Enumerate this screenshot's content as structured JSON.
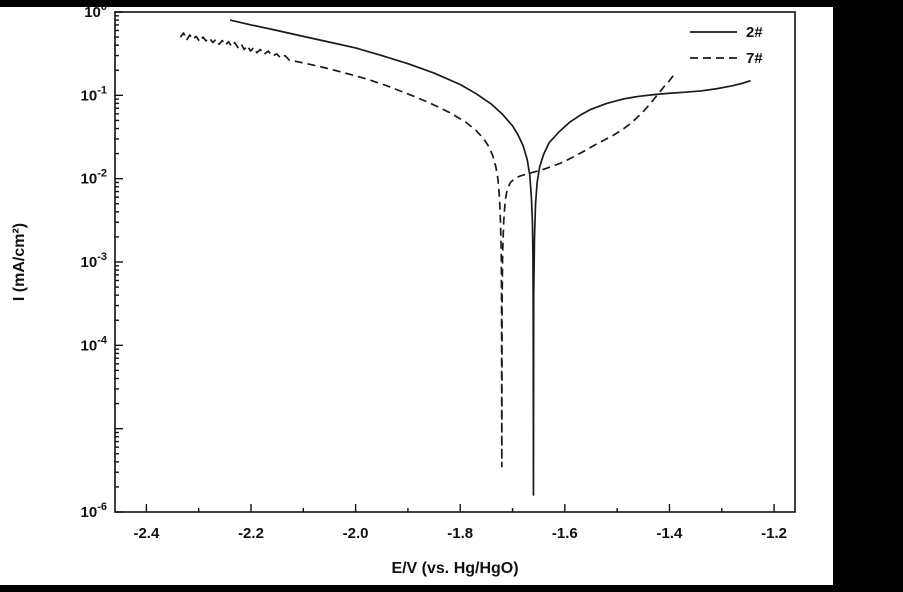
{
  "figure": {
    "background": "#000000",
    "canvas": "#ffffff"
  },
  "chart_data": {
    "type": "line",
    "title": "",
    "xlabel": "E/V (vs. Hg/HgO)",
    "ylabel": "I (mA/cm²)",
    "x_scale": "linear",
    "y_scale": "log",
    "xlim": [
      -2.46,
      -1.16
    ],
    "ylim": [
      1e-06,
      1
    ],
    "grid": false,
    "legend_position": "top-right",
    "line_color": "#1a1a1a",
    "x_ticks": [
      -2.4,
      -2.2,
      -2.0,
      -1.8,
      -1.6,
      -1.4,
      -1.2
    ],
    "x_tick_labels": [
      "-2.4",
      "-2.2",
      "-2.0",
      "-1.8",
      "-1.6",
      "-1.4",
      "-1.2"
    ],
    "x_minor_step": 0.1,
    "y_ticks": [
      {
        "exp": 0,
        "show": true
      },
      {
        "exp": -1,
        "show": true
      },
      {
        "exp": -2,
        "show": true
      },
      {
        "exp": -3,
        "show": true
      },
      {
        "exp": -4,
        "show": true
      },
      {
        "exp": -5,
        "show": false
      },
      {
        "exp": -6,
        "show": true
      }
    ],
    "series": [
      {
        "name": "2#",
        "style": "solid",
        "corrosion_potential": -1.66,
        "points": [
          [
            -2.24,
            0.8
          ],
          [
            -2.2,
            0.7
          ],
          [
            -2.15,
            0.6
          ],
          [
            -2.1,
            0.51
          ],
          [
            -2.05,
            0.435
          ],
          [
            -2.0,
            0.37
          ],
          [
            -1.95,
            0.3
          ],
          [
            -1.9,
            0.24
          ],
          [
            -1.85,
            0.185
          ],
          [
            -1.8,
            0.135
          ],
          [
            -1.77,
            0.105
          ],
          [
            -1.74,
            0.078
          ],
          [
            -1.72,
            0.06
          ],
          [
            -1.7,
            0.043
          ],
          [
            -1.69,
            0.034
          ],
          [
            -1.68,
            0.025
          ],
          [
            -1.672,
            0.017
          ],
          [
            -1.667,
            0.011
          ],
          [
            -1.664,
            0.006
          ],
          [
            -1.662,
            0.003
          ],
          [
            -1.661,
            0.0012
          ],
          [
            -1.6605,
            0.00025
          ],
          [
            -1.66,
            1.6e-06
          ],
          [
            -1.6595,
            0.0004
          ],
          [
            -1.658,
            0.002
          ],
          [
            -1.656,
            0.005
          ],
          [
            -1.653,
            0.009
          ],
          [
            -1.648,
            0.014
          ],
          [
            -1.64,
            0.02
          ],
          [
            -1.63,
            0.027
          ],
          [
            -1.61,
            0.037
          ],
          [
            -1.59,
            0.048
          ],
          [
            -1.57,
            0.058
          ],
          [
            -1.55,
            0.068
          ],
          [
            -1.52,
            0.08
          ],
          [
            -1.49,
            0.09
          ],
          [
            -1.46,
            0.097
          ],
          [
            -1.43,
            0.102
          ],
          [
            -1.4,
            0.106
          ],
          [
            -1.37,
            0.109
          ],
          [
            -1.34,
            0.113
          ],
          [
            -1.31,
            0.12
          ],
          [
            -1.28,
            0.13
          ],
          [
            -1.26,
            0.14
          ],
          [
            -1.245,
            0.15
          ]
        ]
      },
      {
        "name": "7#",
        "style": "dashed",
        "corrosion_potential": -1.72,
        "points": [
          [
            -2.335,
            0.5
          ],
          [
            -2.329,
            0.56
          ],
          [
            -2.323,
            0.46
          ],
          [
            -2.317,
            0.53
          ],
          [
            -2.311,
            0.47
          ],
          [
            -2.305,
            0.51
          ],
          [
            -2.298,
            0.44
          ],
          [
            -2.292,
            0.5
          ],
          [
            -2.286,
            0.45
          ],
          [
            -2.28,
            0.49
          ],
          [
            -2.273,
            0.43
          ],
          [
            -2.267,
            0.47
          ],
          [
            -2.261,
            0.41
          ],
          [
            -2.255,
            0.455
          ],
          [
            -2.249,
            0.4
          ],
          [
            -2.243,
            0.44
          ],
          [
            -2.237,
            0.385
          ],
          [
            -2.231,
            0.43
          ],
          [
            -2.225,
            0.375
          ],
          [
            -2.219,
            0.415
          ],
          [
            -2.213,
            0.355
          ],
          [
            -2.207,
            0.395
          ],
          [
            -2.201,
            0.34
          ],
          [
            -2.195,
            0.375
          ],
          [
            -2.189,
            0.325
          ],
          [
            -2.182,
            0.355
          ],
          [
            -2.175,
            0.31
          ],
          [
            -2.167,
            0.34
          ],
          [
            -2.159,
            0.295
          ],
          [
            -2.151,
            0.315
          ],
          [
            -2.143,
            0.28
          ],
          [
            -2.135,
            0.3
          ],
          [
            -2.127,
            0.265
          ],
          [
            -2.1,
            0.245
          ],
          [
            -2.06,
            0.215
          ],
          [
            -2.02,
            0.185
          ],
          [
            -1.98,
            0.158
          ],
          [
            -1.94,
            0.13
          ],
          [
            -1.9,
            0.104
          ],
          [
            -1.86,
            0.082
          ],
          [
            -1.82,
            0.062
          ],
          [
            -1.79,
            0.048
          ],
          [
            -1.77,
            0.038
          ],
          [
            -1.755,
            0.03
          ],
          [
            -1.745,
            0.024
          ],
          [
            -1.738,
            0.019
          ],
          [
            -1.732,
            0.014
          ],
          [
            -1.728,
            0.01
          ],
          [
            -1.725,
            0.006
          ],
          [
            -1.723,
            0.003
          ],
          [
            -1.7215,
            0.0012
          ],
          [
            -1.721,
            0.00035
          ],
          [
            -1.7205,
            3.5e-06
          ],
          [
            -1.72,
            0.0003
          ],
          [
            -1.719,
            0.0012
          ],
          [
            -1.717,
            0.003
          ],
          [
            -1.714,
            0.0055
          ],
          [
            -1.71,
            0.0075
          ],
          [
            -1.704,
            0.009
          ],
          [
            -1.696,
            0.01
          ],
          [
            -1.685,
            0.0108
          ],
          [
            -1.67,
            0.0115
          ],
          [
            -1.655,
            0.0122
          ],
          [
            -1.64,
            0.013
          ],
          [
            -1.625,
            0.014
          ],
          [
            -1.61,
            0.0152
          ],
          [
            -1.595,
            0.0168
          ],
          [
            -1.578,
            0.019
          ],
          [
            -1.56,
            0.022
          ],
          [
            -1.542,
            0.0255
          ],
          [
            -1.525,
            0.029
          ],
          [
            -1.508,
            0.033
          ],
          [
            -1.492,
            0.038
          ],
          [
            -1.476,
            0.045
          ],
          [
            -1.462,
            0.054
          ],
          [
            -1.448,
            0.066
          ],
          [
            -1.435,
            0.082
          ],
          [
            -1.422,
            0.103
          ],
          [
            -1.41,
            0.128
          ],
          [
            -1.4,
            0.15
          ],
          [
            -1.392,
            0.175
          ]
        ]
      }
    ]
  }
}
